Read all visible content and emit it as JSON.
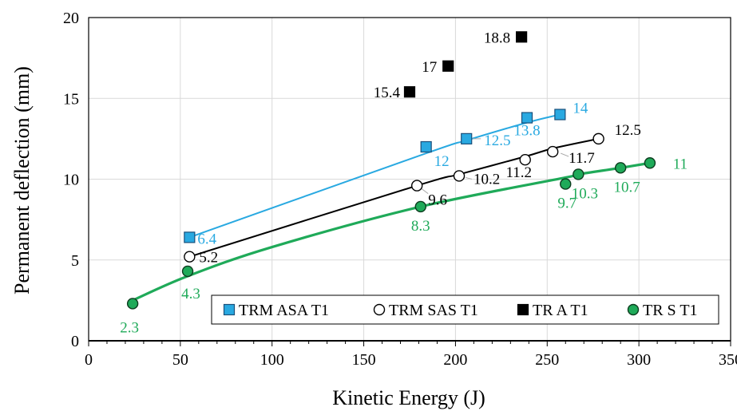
{
  "chart_data": {
    "type": "scatter",
    "title": "",
    "xlabel": "Kinetic Energy (J)",
    "ylabel": "Permanent deflection (mm)",
    "xlim": [
      0,
      350
    ],
    "ylim": [
      0,
      20
    ],
    "xticks": [
      0,
      50,
      100,
      150,
      200,
      250,
      300,
      350
    ],
    "yticks": [
      0,
      5,
      10,
      15,
      20
    ],
    "grid": "vertical and horizontal gridlines",
    "legend": "bottom-right, inside plot",
    "series": [
      {
        "name": "TRM ASA T1",
        "marker": "square",
        "fill": "#29a9e1",
        "stroke": "#1a4f7a",
        "line_color": "#29a9e1",
        "label_color": "#29a9e1",
        "x": [
          55,
          184,
          206,
          239,
          257
        ],
        "y": [
          6.4,
          12,
          12.5,
          13.8,
          14
        ],
        "labels": [
          "6.4",
          "12",
          "12.5",
          "13.8",
          "14"
        ],
        "trend": {
          "x": [
            55,
            184,
            206,
            239,
            257
          ],
          "y": [
            6.4,
            11.6,
            12.4,
            13.5,
            14.0
          ]
        }
      },
      {
        "name": "TRM SAS T1",
        "marker": "circle-open",
        "fill": "#ffffff",
        "stroke": "#000000",
        "line_color": "#000000",
        "label_color": "#000000",
        "x": [
          55,
          179,
          202,
          238,
          253,
          278
        ],
        "y": [
          5.2,
          9.6,
          10.2,
          11.2,
          11.7,
          12.5
        ],
        "labels": [
          "5.2",
          "9.6",
          "10.2",
          "11.2",
          "11.7",
          "12.5"
        ],
        "trend": {
          "x": [
            55,
            179,
            202,
            238,
            253,
            278
          ],
          "y": [
            5.2,
            9.6,
            10.3,
            11.4,
            11.9,
            12.5
          ]
        }
      },
      {
        "name": "TR A T1",
        "marker": "square",
        "fill": "#000000",
        "stroke": "#000000",
        "line_color": "",
        "label_color": "#000000",
        "x": [
          175,
          196,
          236
        ],
        "y": [
          15.4,
          17,
          18.8
        ],
        "labels": [
          "15.4",
          "17",
          "18.8"
        ]
      },
      {
        "name": "TR S T1",
        "marker": "circle",
        "fill": "#1faa59",
        "stroke": "#0d3d1f",
        "line_color": "#1faa59",
        "label_color": "#1faa59",
        "x": [
          24,
          54,
          181,
          260,
          267,
          290,
          306
        ],
        "y": [
          2.3,
          4.3,
          8.3,
          9.7,
          10.3,
          10.7,
          11
        ],
        "labels": [
          "2.3",
          "4.3",
          "8.3",
          "9.7",
          "10.3",
          "10.7",
          "11"
        ],
        "trend": {
          "x": [
            24,
            54,
            100,
            181,
            260,
            267,
            290,
            306
          ],
          "y": [
            2.5,
            4.0,
            5.8,
            8.3,
            10.1,
            10.3,
            10.7,
            11.0
          ]
        }
      }
    ]
  }
}
